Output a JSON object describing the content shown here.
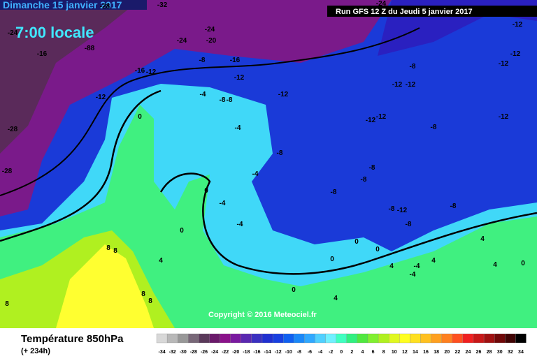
{
  "header": {
    "date": "Dimanche 15 janvier 2017",
    "time": "7:00 locale",
    "run": "Run GFS 12 Z du Jeudi 5 janvier 2017"
  },
  "map": {
    "copyright": "Copyright © 2016 Meteociel.fr",
    "contour_labels": [
      -12,
      -12,
      -12,
      -8,
      -12,
      -12,
      -12,
      -8,
      -8,
      -12,
      -12,
      -16,
      -8,
      -20,
      -24,
      -24,
      -88,
      -16,
      -12,
      -4,
      -8,
      -4,
      -4,
      -4,
      0,
      0,
      0,
      -8,
      -8,
      -8,
      -8,
      -12,
      -12,
      -12,
      -8,
      -8,
      -12,
      -8,
      0,
      0,
      0,
      -4,
      -4,
      0,
      4,
      4,
      4,
      4,
      8,
      8,
      8,
      8,
      8,
      -28,
      -28,
      -24,
      -16,
      -32,
      -28,
      -24,
      -4,
      4,
      4,
      0
    ]
  },
  "footer": {
    "title": "Température 850hPa",
    "lead": "(+ 234h)"
  },
  "scale": {
    "labels": [
      -34,
      -32,
      -30,
      -28,
      -26,
      -24,
      -22,
      -20,
      -18,
      -16,
      -14,
      -12,
      -10,
      -8,
      -6,
      -4,
      -2,
      0,
      2,
      4,
      6,
      8,
      10,
      12,
      14,
      16,
      18,
      20,
      22,
      24,
      26,
      28,
      30,
      32,
      34
    ],
    "colors": [
      "#d8d8d8",
      "#b8b8b8",
      "#989898",
      "#786878",
      "#5a3a5a",
      "#6a1a6a",
      "#8a128a",
      "#7a1aa0",
      "#5a28b0",
      "#3a30c0",
      "#2030d0",
      "#1840e0",
      "#1060f0",
      "#1a88f8",
      "#30a8ff",
      "#50d0ff",
      "#70f0ff",
      "#40ffc0",
      "#30f080",
      "#50e840",
      "#80f030",
      "#b0f020",
      "#e0f820",
      "#ffff20",
      "#ffe020",
      "#ffc020",
      "#ffa020",
      "#ff8020",
      "#ff5020",
      "#f02020",
      "#c81818",
      "#a01010",
      "#700808",
      "#400404",
      "#000000"
    ]
  }
}
